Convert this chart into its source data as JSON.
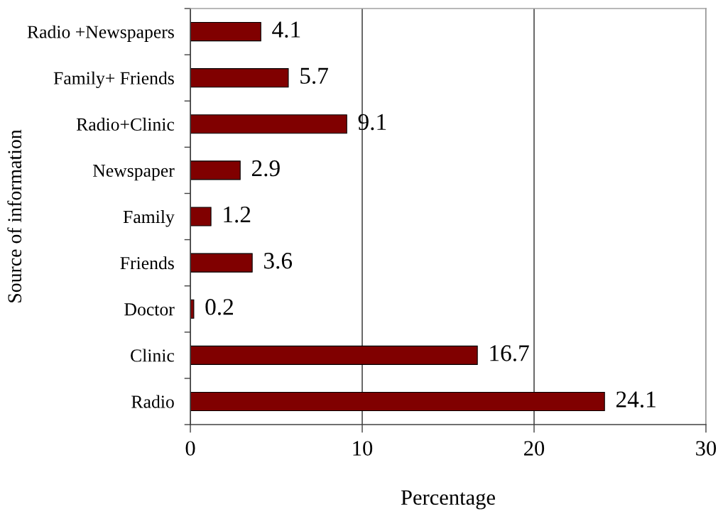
{
  "chart_data": {
    "type": "bar",
    "orientation": "horizontal",
    "xlabel": "Percentage",
    "ylabel": "Source of information",
    "categories": [
      "Radio +Newspapers",
      "Family+ Friends",
      "Radio+Clinic",
      "Newspaper",
      "Family",
      "Friends",
      "Doctor",
      "Clinic",
      "Radio"
    ],
    "values": [
      4.1,
      5.7,
      9.1,
      2.9,
      1.2,
      3.6,
      0.2,
      16.7,
      24.1
    ],
    "color": "#800000",
    "xlim": [
      0,
      30
    ],
    "xticks": [
      0,
      10,
      20,
      30
    ],
    "grid": "x",
    "data_labels": true
  }
}
